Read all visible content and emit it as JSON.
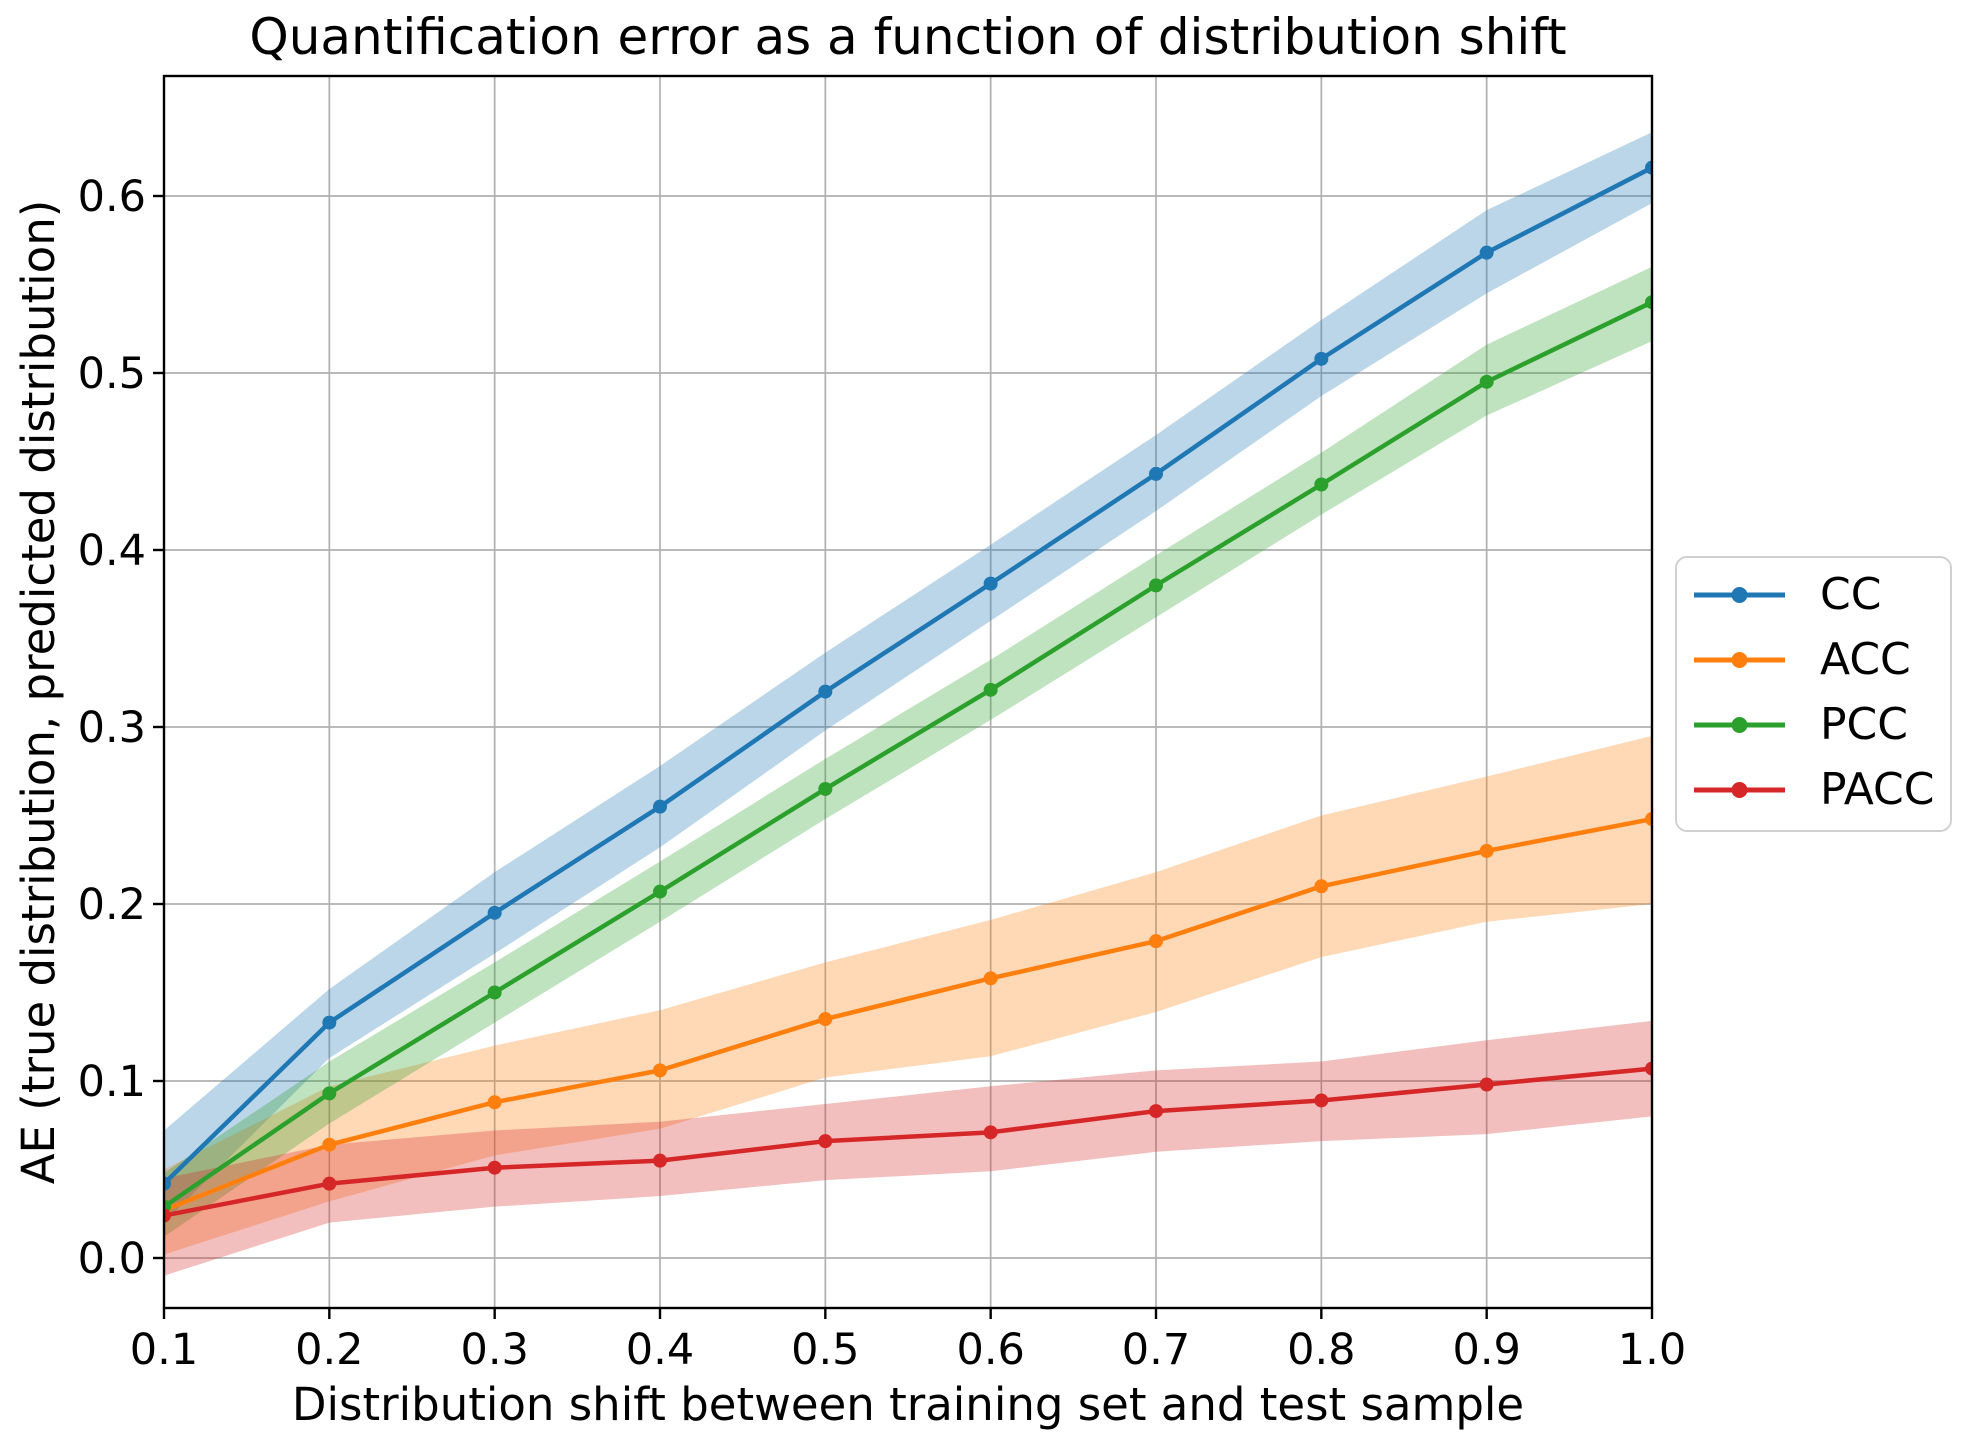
{
  "chart_data": {
    "type": "line",
    "title": "Quantification error as a function of distribution shift",
    "xlabel": "Distribution shift between training set and test sample",
    "ylabel": "AE (true distribution, predicted distribution)",
    "x": [
      0.1,
      0.2,
      0.3,
      0.4,
      0.5,
      0.6,
      0.7,
      0.8,
      0.9,
      1.0
    ],
    "xtick_labels": [
      "0.1",
      "0.2",
      "0.3",
      "0.4",
      "0.5",
      "0.6",
      "0.7",
      "0.8",
      "0.9",
      "1.0"
    ],
    "ytick_values": [
      0.0,
      0.1,
      0.2,
      0.3,
      0.4,
      0.5,
      0.6
    ],
    "ytick_labels": [
      "0.0",
      "0.1",
      "0.2",
      "0.3",
      "0.4",
      "0.5",
      "0.6"
    ],
    "xlim": [
      0.1,
      1.0
    ],
    "ylim": [
      -0.028,
      0.668
    ],
    "grid": true,
    "band_opacity": 0.3,
    "legend": {
      "position": "outside-right",
      "entries": [
        "CC",
        "ACC",
        "PCC",
        "PACC"
      ]
    },
    "series": [
      {
        "name": "CC",
        "color": "#1f77b4",
        "values": [
          0.042,
          0.133,
          0.195,
          0.255,
          0.32,
          0.381,
          0.443,
          0.508,
          0.568,
          0.616
        ],
        "band_lower": [
          0.02,
          0.113,
          0.172,
          0.232,
          0.298,
          0.36,
          0.422,
          0.487,
          0.545,
          0.596
        ],
        "band_upper": [
          0.072,
          0.152,
          0.218,
          0.278,
          0.342,
          0.403,
          0.465,
          0.53,
          0.592,
          0.636
        ]
      },
      {
        "name": "ACC",
        "color": "#ff7f0e",
        "values": [
          0.027,
          0.064,
          0.088,
          0.106,
          0.135,
          0.158,
          0.179,
          0.21,
          0.23,
          0.248
        ],
        "band_lower": [
          0.002,
          0.032,
          0.058,
          0.073,
          0.102,
          0.114,
          0.139,
          0.17,
          0.19,
          0.2
        ],
        "band_upper": [
          0.05,
          0.097,
          0.12,
          0.14,
          0.167,
          0.191,
          0.218,
          0.25,
          0.272,
          0.295
        ]
      },
      {
        "name": "PCC",
        "color": "#2ca02c",
        "values": [
          0.029,
          0.093,
          0.15,
          0.207,
          0.265,
          0.321,
          0.38,
          0.437,
          0.495,
          0.54
        ],
        "band_lower": [
          0.012,
          0.076,
          0.133,
          0.19,
          0.248,
          0.304,
          0.362,
          0.42,
          0.476,
          0.518
        ],
        "band_upper": [
          0.048,
          0.111,
          0.167,
          0.224,
          0.282,
          0.338,
          0.397,
          0.455,
          0.516,
          0.56
        ]
      },
      {
        "name": "PACC",
        "color": "#d62728",
        "values": [
          0.024,
          0.042,
          0.051,
          0.055,
          0.066,
          0.071,
          0.083,
          0.089,
          0.098,
          0.107
        ],
        "band_lower": [
          -0.01,
          0.02,
          0.029,
          0.035,
          0.044,
          0.049,
          0.06,
          0.066,
          0.07,
          0.08
        ],
        "band_upper": [
          0.045,
          0.064,
          0.072,
          0.077,
          0.087,
          0.097,
          0.106,
          0.111,
          0.123,
          0.134
        ]
      }
    ],
    "styles": {
      "background": "#ffffff",
      "grid_color": "#b0b0b0",
      "spine_color": "#000000",
      "text_color": "#000000",
      "legend_border": "#d0d0d0"
    }
  }
}
